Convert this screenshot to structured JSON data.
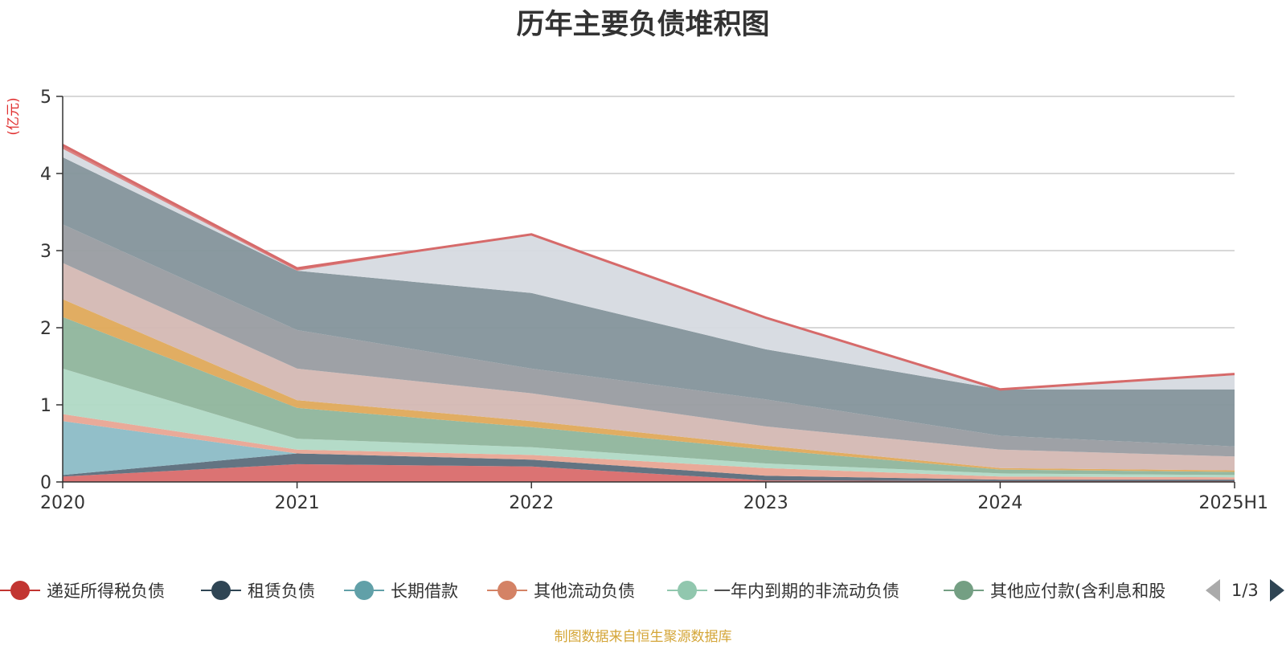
{
  "chart_data": {
    "type": "area",
    "stacked": true,
    "title": "历年主要负债堆积图",
    "ylabel": "(亿元)",
    "xlabel": "",
    "categories": [
      "2020",
      "2021",
      "2022",
      "2023",
      "2024",
      "2025H1"
    ],
    "ylim": [
      0,
      5
    ],
    "yticks": [
      0,
      1,
      2,
      3,
      4,
      5
    ],
    "grid": true,
    "series": [
      {
        "name": "递延所得税负债",
        "color": "#d96b6b",
        "values": [
          0.07,
          0.23,
          0.2,
          0.02,
          0.01,
          0.01
        ]
      },
      {
        "name": "租赁负债",
        "color": "#5b6d7b",
        "values": [
          0.02,
          0.14,
          0.09,
          0.06,
          0.02,
          0.02
        ]
      },
      {
        "name": "长期借款",
        "color": "#8cbcc6",
        "values": [
          0.7,
          0.0,
          0.0,
          0.0,
          0.0,
          0.0
        ]
      },
      {
        "name": "其他流动负债",
        "color": "#e8a594",
        "values": [
          0.09,
          0.05,
          0.06,
          0.1,
          0.04,
          0.03
        ]
      },
      {
        "name": "一年内到期的非流动负债",
        "color": "#b0d9c5",
        "values": [
          0.59,
          0.14,
          0.1,
          0.06,
          0.04,
          0.03
        ]
      },
      {
        "name": "其他应付款(含利息和股",
        "color": "#8fb59c",
        "values": [
          0.67,
          0.4,
          0.26,
          0.18,
          0.05,
          0.04
        ]
      },
      {
        "name": "",
        "color": "#dfa95a",
        "values": [
          0.23,
          0.1,
          0.08,
          0.05,
          0.02,
          0.02
        ]
      },
      {
        "name": "",
        "color": "#d4b8b3",
        "values": [
          0.47,
          0.41,
          0.36,
          0.25,
          0.24,
          0.18
        ]
      },
      {
        "name": "",
        "color": "#999ca1",
        "values": [
          0.5,
          0.5,
          0.32,
          0.35,
          0.18,
          0.13
        ]
      },
      {
        "name": "",
        "color": "#84939b",
        "values": [
          0.87,
          0.77,
          0.98,
          0.65,
          0.6,
          0.74
        ]
      },
      {
        "name": "",
        "color": "#d6dae0",
        "values": [
          0.11,
          0.0,
          0.76,
          0.41,
          0.0,
          0.2
        ]
      },
      {
        "name": "",
        "color": "#d97a7a",
        "values": [
          0.05,
          0.03,
          0.0,
          0.0,
          0.0,
          0.0
        ]
      }
    ]
  },
  "legend": {
    "items": [
      {
        "label": "递延所得税负债",
        "color": "#c23531"
      },
      {
        "label": "租赁负债",
        "color": "#2f4554"
      },
      {
        "label": "长期借款",
        "color": "#61a0a8"
      },
      {
        "label": "其他流动负债",
        "color": "#d48265"
      },
      {
        "label": "一年内到期的非流动负债",
        "color": "#91c7ae"
      },
      {
        "label": "其他应付款(含利息和股",
        "color": "#749f83"
      }
    ],
    "page_indicator": "1/3"
  },
  "source_note": "制图数据来自恒生聚源数据库"
}
